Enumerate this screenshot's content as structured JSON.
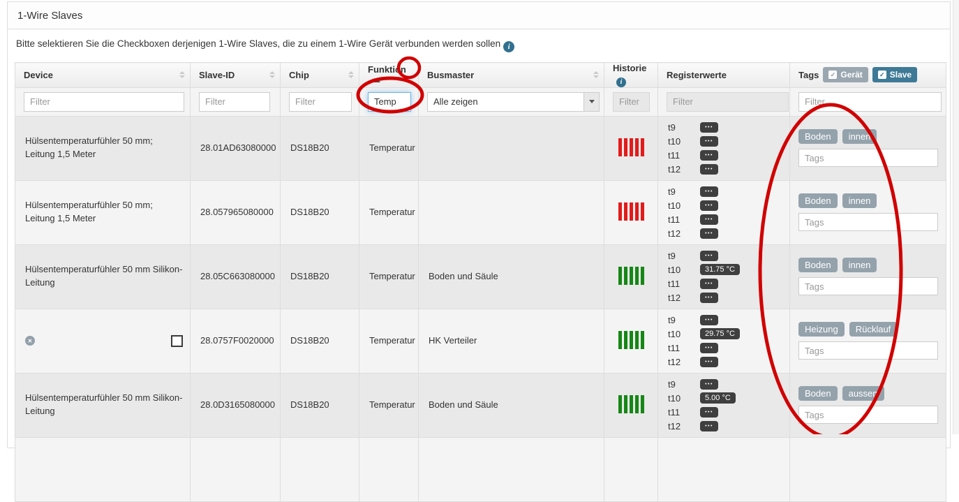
{
  "panel": {
    "title": "1-Wire Slaves"
  },
  "intro": {
    "text": "Bitte selektieren Sie die Checkboxen derjenigen 1-Wire Slaves, die zu einem 1-Wire Gerät verbunden werden sollen"
  },
  "icons": {
    "info": "i",
    "dots": "•••",
    "check": "✓",
    "delete": "✕"
  },
  "colors": {
    "bar_red": "#e31b1b",
    "bar_green": "#168716",
    "tag_badge": "#94a2ac",
    "toggle_geraet": "#9aa7b0",
    "toggle_slave": "#3e7a96",
    "info_icon": "#31708f",
    "annotation": "#d10000"
  },
  "table": {
    "columns": {
      "device": "Device",
      "slave_id": "Slave-ID",
      "chip": "Chip",
      "funktion": "Funktion",
      "busmaster": "Busmaster",
      "historie": "Historie",
      "registerwerte": "Registerwerte",
      "tags": "Tags"
    },
    "tags_toggles": [
      {
        "label": "Gerät"
      },
      {
        "label": "Slave"
      }
    ],
    "filters": {
      "device": "Filter",
      "slave_id": "Filter",
      "chip": "Filter",
      "funktion_value": "Temp",
      "busmaster_selected": "Alle zeigen",
      "historie": "Filter",
      "registerwerte": "Filter",
      "tags": "Filter"
    },
    "rows": [
      {
        "device": "Hülsentemperaturfühler 50 mm; Leitung 1,5 Meter",
        "slave_id": "28.01AD63080000",
        "chip": "DS18B20",
        "funktion": "Temperatur",
        "busmaster": "",
        "historie": "red",
        "removable": false,
        "registers": [
          {
            "label": "t9",
            "kind": "menu"
          },
          {
            "label": "t10",
            "kind": "menu"
          },
          {
            "label": "t11",
            "kind": "menu"
          },
          {
            "label": "t12",
            "kind": "menu"
          }
        ],
        "tags": [
          "Boden",
          "innen"
        ],
        "tags_placeholder": "Tags"
      },
      {
        "device": "Hülsentemperaturfühler 50 mm; Leitung 1,5 Meter",
        "slave_id": "28.057965080000",
        "chip": "DS18B20",
        "funktion": "Temperatur",
        "busmaster": "",
        "historie": "red",
        "removable": false,
        "registers": [
          {
            "label": "t9",
            "kind": "menu"
          },
          {
            "label": "t10",
            "kind": "menu"
          },
          {
            "label": "t11",
            "kind": "menu"
          },
          {
            "label": "t12",
            "kind": "menu"
          }
        ],
        "tags": [
          "Boden",
          "innen"
        ],
        "tags_placeholder": "Tags"
      },
      {
        "device": "Hülsentemperaturfühler 50 mm Silikon-Leitung",
        "slave_id": "28.05C663080000",
        "chip": "DS18B20",
        "funktion": "Temperatur",
        "busmaster": "Boden und Säule",
        "historie": "green",
        "removable": false,
        "registers": [
          {
            "label": "t9",
            "kind": "menu"
          },
          {
            "label": "t10",
            "kind": "value",
            "value": "31.75 °C"
          },
          {
            "label": "t11",
            "kind": "menu"
          },
          {
            "label": "t12",
            "kind": "menu"
          }
        ],
        "tags": [
          "Boden",
          "innen"
        ],
        "tags_placeholder": "Tags"
      },
      {
        "device": "",
        "slave_id": "28.0757F0020000",
        "chip": "DS18B20",
        "funktion": "Temperatur",
        "busmaster": "HK Verteiler",
        "historie": "green",
        "removable": true,
        "registers": [
          {
            "label": "t9",
            "kind": "menu"
          },
          {
            "label": "t10",
            "kind": "value",
            "value": "29.75 °C"
          },
          {
            "label": "t11",
            "kind": "menu"
          },
          {
            "label": "t12",
            "kind": "menu"
          }
        ],
        "tags": [
          "Heizung",
          "Rücklauf"
        ],
        "tags_placeholder": "Tags"
      },
      {
        "device": "Hülsentemperaturfühler 50 mm Silikon-Leitung",
        "slave_id": "28.0D3165080000",
        "chip": "DS18B20",
        "funktion": "Temperatur",
        "busmaster": "Boden und Säule",
        "historie": "green",
        "removable": false,
        "registers": [
          {
            "label": "t9",
            "kind": "menu"
          },
          {
            "label": "t10",
            "kind": "value",
            "value": "5.00 °C"
          },
          {
            "label": "t11",
            "kind": "menu"
          },
          {
            "label": "t12",
            "kind": "menu"
          }
        ],
        "tags": [
          "Boden",
          "aussen"
        ],
        "tags_placeholder": "Tags"
      }
    ]
  }
}
